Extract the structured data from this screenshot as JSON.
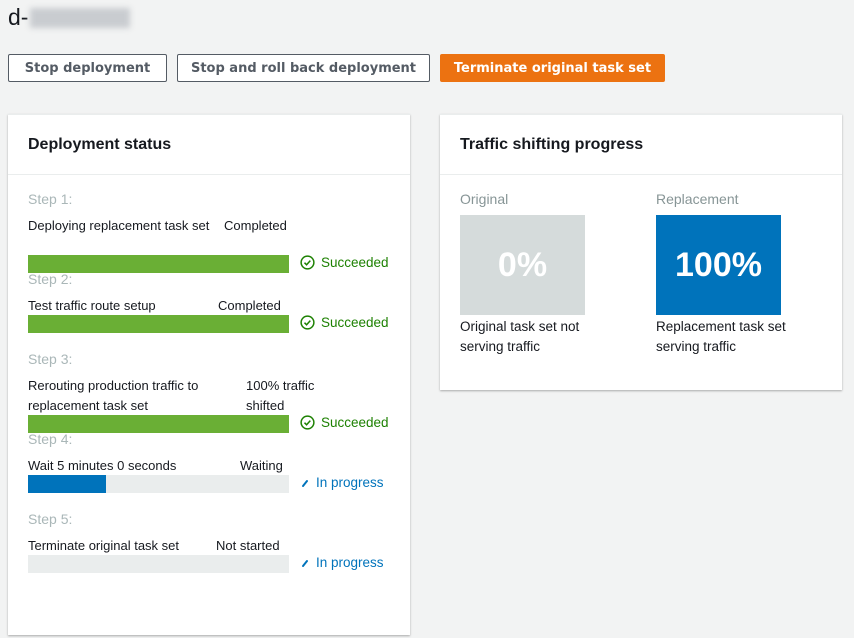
{
  "header": {
    "title_prefix": "d-"
  },
  "toolbar": {
    "stop": "Stop deployment",
    "rollback": "Stop and roll back deployment",
    "terminate": "Terminate original task set"
  },
  "status_panel": {
    "title": "Deployment status",
    "steps": [
      {
        "label": "Step 1:",
        "desc": "Deploying replacement task set",
        "status": "Completed",
        "result": "Succeeded",
        "progress": 100,
        "result_icon": "check-circle-icon"
      },
      {
        "label": "Step 2:",
        "desc": "Test traffic route setup",
        "status": "Completed",
        "result": "Succeeded",
        "progress": 100,
        "result_icon": "check-circle-icon"
      },
      {
        "label": "Step 3:",
        "desc": "Rerouting production traffic to replacement task set",
        "status": "100% traffic shifted",
        "result": "Succeeded",
        "progress": 100,
        "result_icon": "check-circle-icon"
      },
      {
        "label": "Step 4:",
        "desc": "Wait 5 minutes 0 seconds",
        "status": "Waiting",
        "result": "In progress",
        "progress": 30,
        "result_icon": "spinner-icon"
      },
      {
        "label": "Step 5:",
        "desc": "Terminate original task set",
        "status": "Not started",
        "result": "In progress",
        "progress": 0,
        "result_icon": "spinner-icon"
      }
    ]
  },
  "traffic_panel": {
    "title": "Traffic shifting progress",
    "original": {
      "label": "Original",
      "percent": "0%",
      "caption": "Original task set not serving traffic"
    },
    "replacement": {
      "label": "Replacement",
      "percent": "100%",
      "caption": "Replacement task set serving traffic"
    }
  },
  "colors": {
    "success": "#1d8102",
    "bar_green": "#6aaf35",
    "progress_blue": "#0073bb",
    "primary": "#ec7211",
    "original_box": "#d5dbdb"
  }
}
